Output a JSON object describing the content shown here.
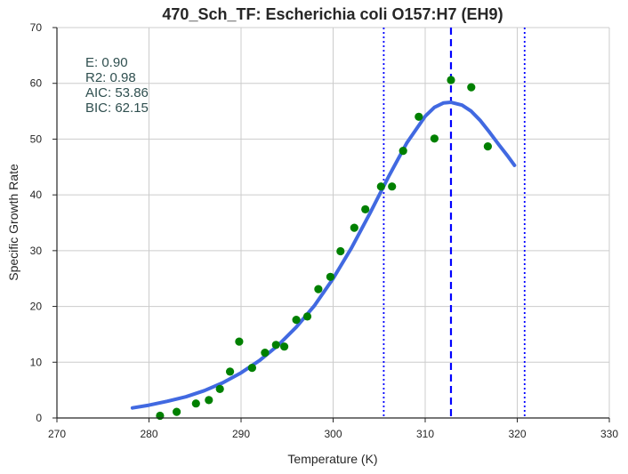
{
  "chart_data": {
    "type": "scatter",
    "title": "470_Sch_TF: Escherichia coli O157:H7 (EH9)",
    "xlabel": "Temperature (K)",
    "ylabel": "Specific Growth Rate",
    "xlim": [
      270,
      330
    ],
    "ylim": [
      0,
      70
    ],
    "xticks": [
      "270",
      "280",
      "290",
      "300",
      "310",
      "320",
      "330"
    ],
    "yticks": [
      "0",
      "10",
      "20",
      "30",
      "40",
      "50",
      "60",
      "70"
    ],
    "grid": true,
    "stats": [
      "E:  0.90",
      "R2:  0.98",
      "AIC: 53.86",
      "BIC: 62.15"
    ],
    "colors": {
      "points": "#008000",
      "fit": "#4169e1",
      "peak_line": "#0000ff",
      "bound_lines": "#0000ff",
      "grid": "#cccccc",
      "axis": "#262626",
      "stats_text": "#2f4f4f"
    },
    "series": [
      {
        "kind": "points",
        "x": [
          281.2,
          283.0,
          285.1,
          286.5,
          287.7,
          288.8,
          289.8,
          291.2,
          292.6,
          293.8,
          294.7,
          296.0,
          297.2,
          298.4,
          299.7,
          300.8,
          302.3,
          303.5,
          305.2,
          306.4,
          307.6,
          309.3,
          311.0,
          312.8,
          315.0,
          316.8
        ],
        "y": [
          0.4,
          1.1,
          2.6,
          3.2,
          5.2,
          8.3,
          13.7,
          9.0,
          11.7,
          13.1,
          12.8,
          17.6,
          18.2,
          23.1,
          25.3,
          29.9,
          34.1,
          37.4,
          41.5,
          41.5,
          47.9,
          54.0,
          50.1,
          60.6,
          59.3,
          48.7
        ]
      },
      {
        "kind": "fit",
        "x": [
          278.2,
          280,
          282,
          284,
          286,
          288,
          290,
          292,
          294,
          296,
          298,
          300,
          302,
          304,
          306,
          308,
          310,
          311,
          312,
          312.8,
          314,
          315,
          316,
          317,
          318,
          319,
          319.7
        ],
        "y": [
          1.8,
          2.3,
          3.0,
          3.8,
          4.9,
          6.3,
          8.1,
          10.3,
          13.0,
          16.3,
          20.2,
          25.0,
          30.5,
          36.7,
          43.2,
          49.3,
          54.1,
          55.7,
          56.5,
          56.6,
          56.1,
          55.0,
          53.3,
          51.2,
          49.0,
          46.9,
          45.3
        ]
      }
    ],
    "vlines": [
      {
        "x": 312.8,
        "style": "dashed"
      },
      {
        "x": 305.5,
        "style": "dotted"
      },
      {
        "x": 320.8,
        "style": "dotted"
      }
    ]
  }
}
